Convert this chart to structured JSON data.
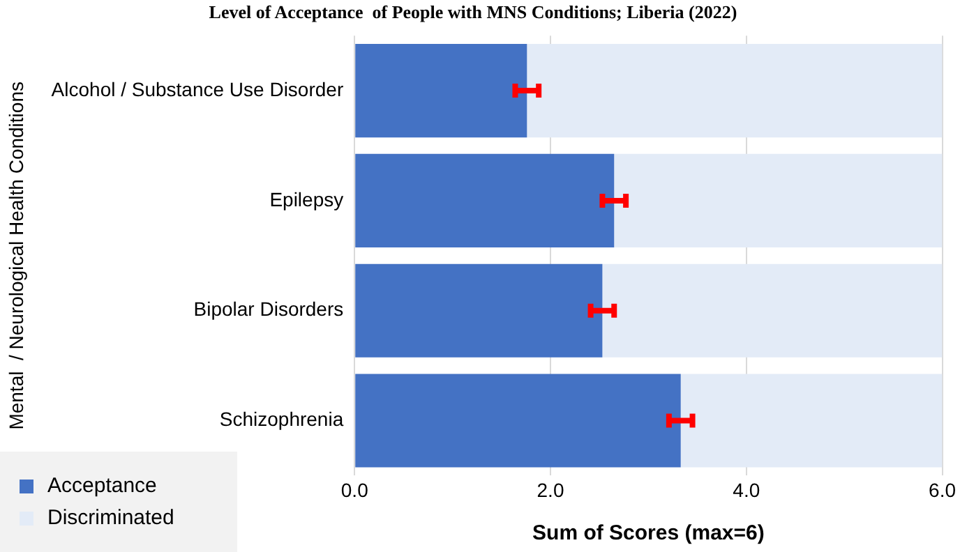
{
  "chart_data": {
    "type": "bar",
    "orientation": "horizontal",
    "stacked": true,
    "title": "Level of Acceptance  of People with MNS Conditions; Liberia (2022)",
    "xlabel": "Sum of Scores (max=6)",
    "ylabel": "Mental  / Neurological Health Conditions",
    "categories": [
      "Alcohol / Substance Use Disorder",
      "Epilepsy",
      "Bipolar Disorders",
      "Schizophrenia"
    ],
    "series": [
      {
        "name": "Acceptance",
        "color": "#4472c4",
        "values": [
          1.76,
          2.65,
          2.53,
          3.33
        ],
        "errors": [
          0.12,
          0.12,
          0.12,
          0.12
        ]
      },
      {
        "name": "Discriminated",
        "color": "#e3ebf7",
        "values": [
          4.24,
          3.35,
          3.47,
          2.67
        ]
      }
    ],
    "xlim": [
      0,
      6
    ],
    "xticks": [
      {
        "value": 0,
        "label": "0.0"
      },
      {
        "value": 2,
        "label": "2.0"
      },
      {
        "value": 4,
        "label": "4.0"
      },
      {
        "value": 6,
        "label": "6.0"
      }
    ],
    "grid": "x",
    "legend": "bottom left"
  }
}
